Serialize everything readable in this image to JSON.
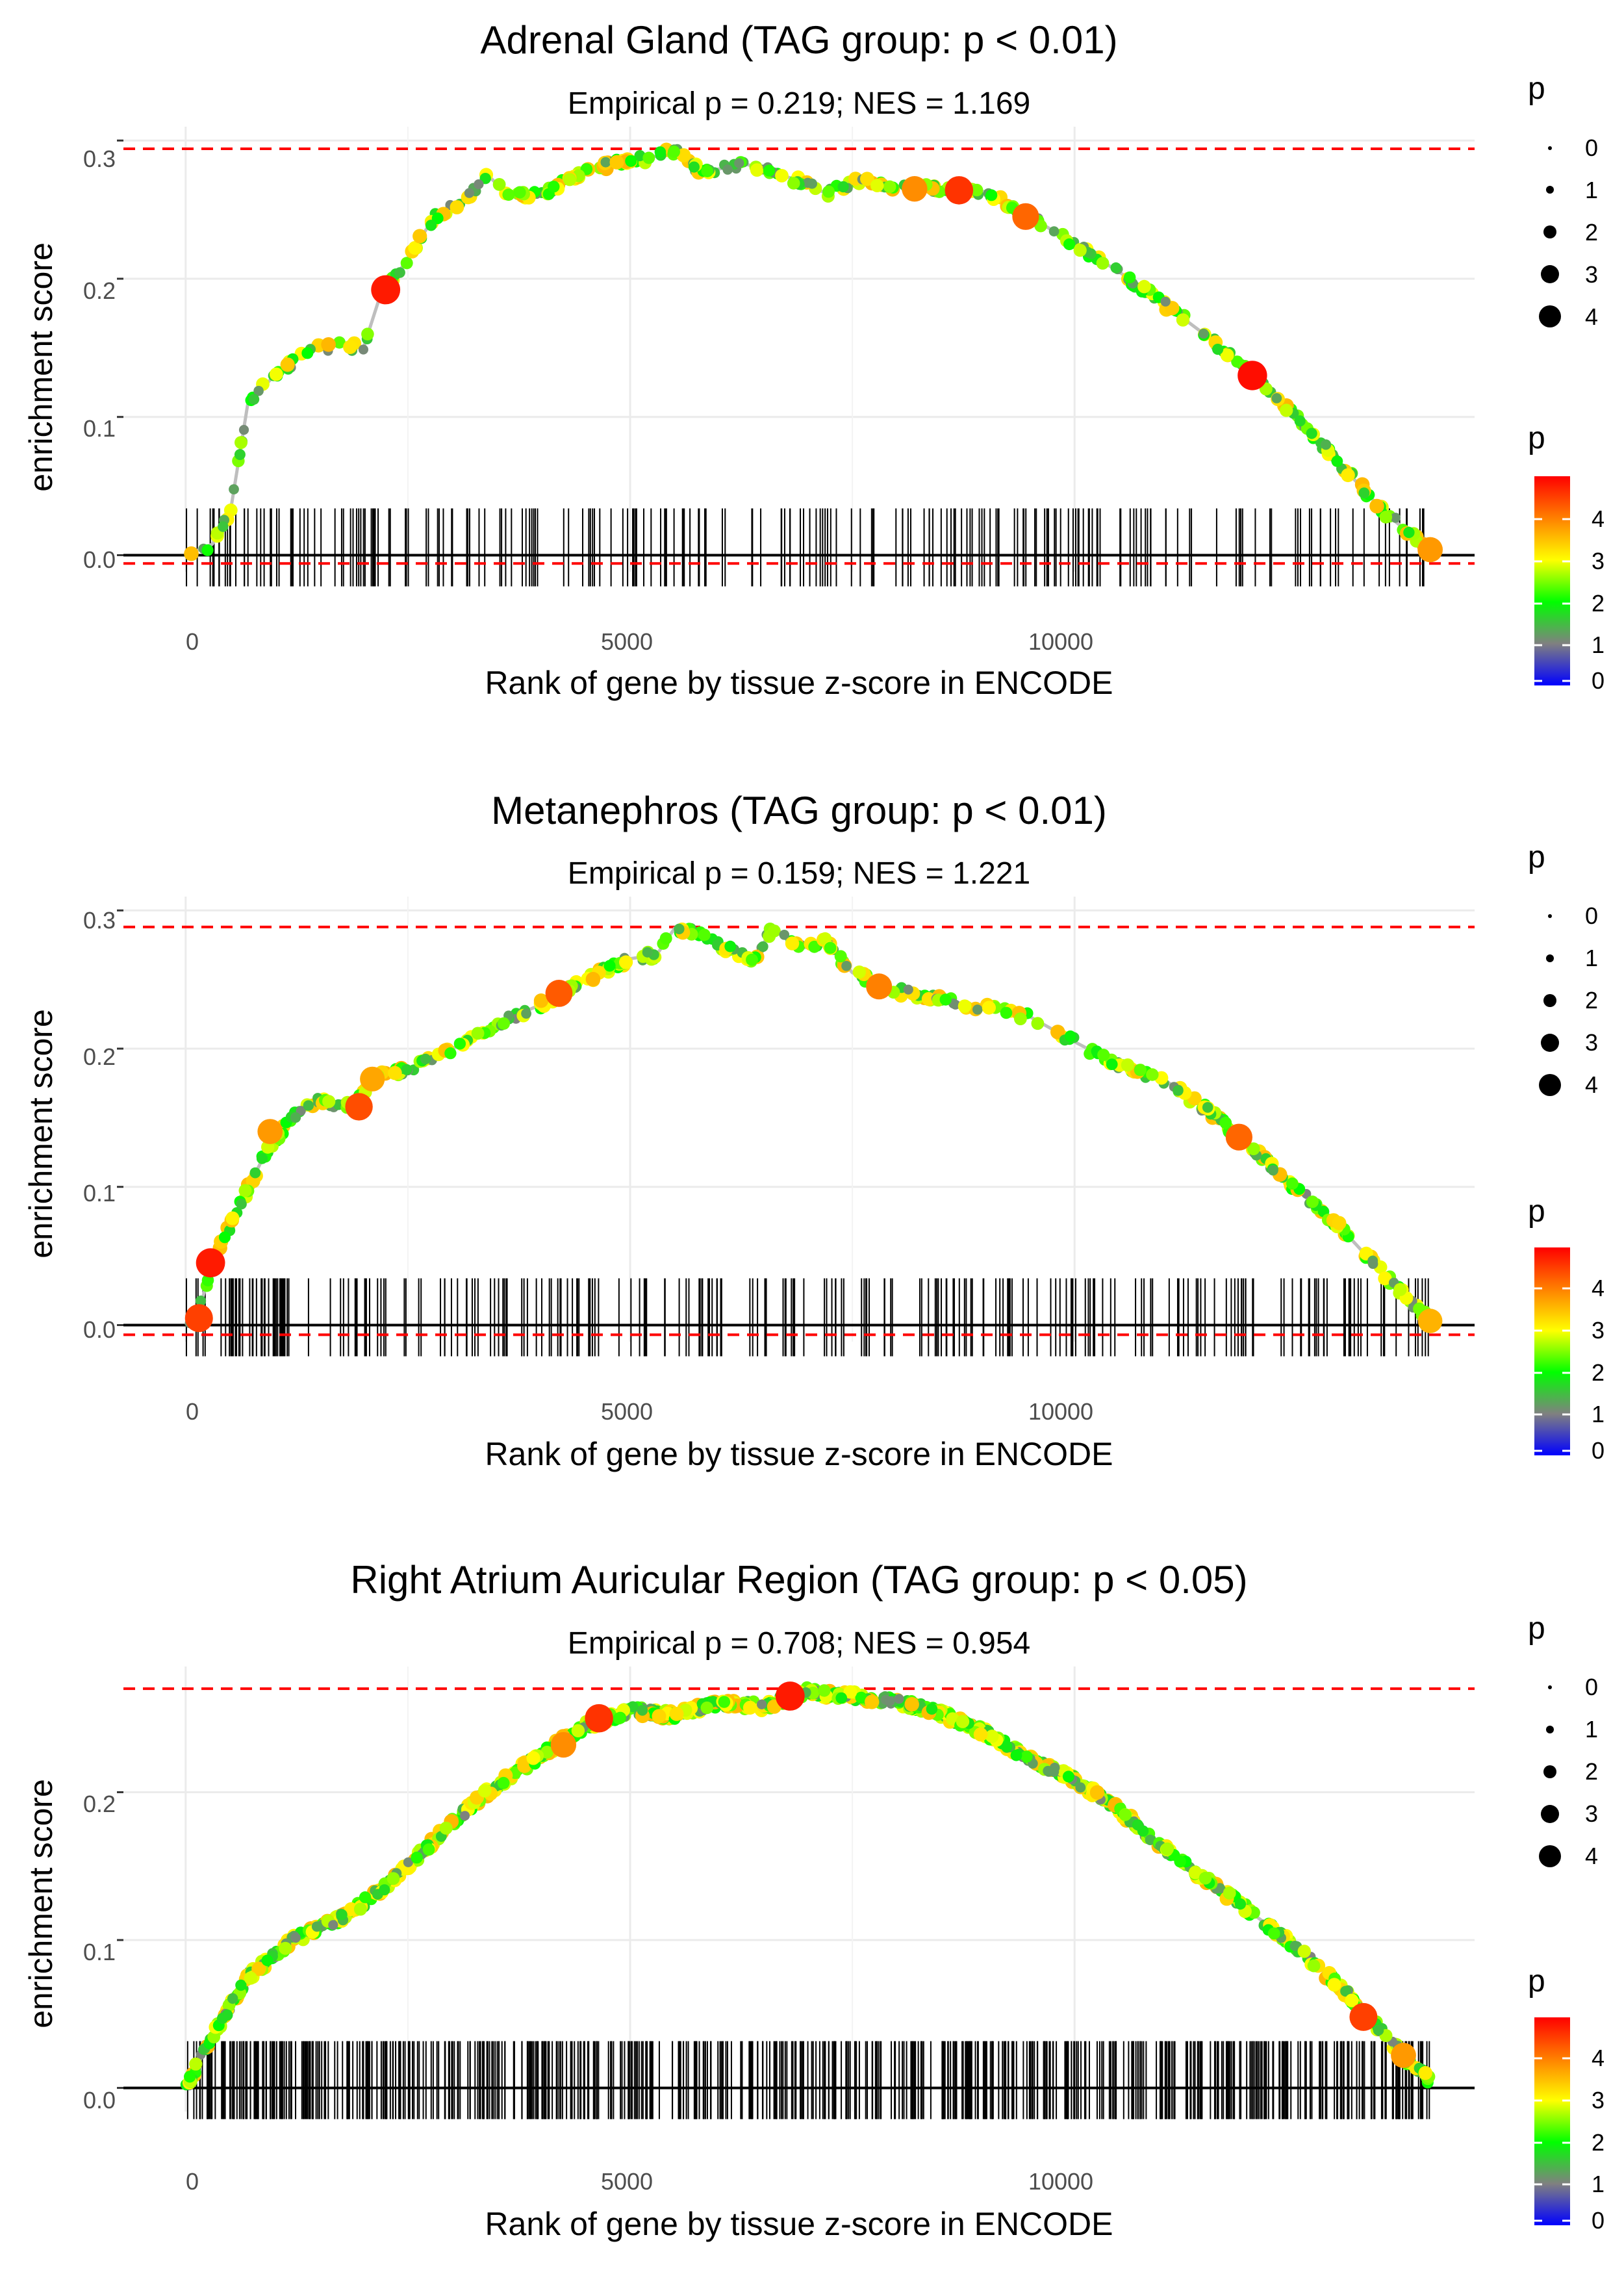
{
  "chart_data": [
    {
      "type": "line",
      "title": "Adrenal Gland (TAG group: p < 0.01)",
      "subtitle": "Empirical p = 0.219; NES = 1.169",
      "xlabel": "Rank of gene by tissue z-score in ENCODE",
      "ylabel": "enrichment score",
      "xlim": [
        -700,
        14500
      ],
      "ylim": [
        -0.012,
        0.31
      ],
      "xticks": [
        0,
        5000,
        10000
      ],
      "xtick_labels": [
        "0",
        "5000",
        "10000"
      ],
      "yticks": [
        0,
        0.1,
        0.2,
        0.3
      ],
      "ytick_labels": [
        "0.0",
        "0.1",
        "0.2",
        "0.3"
      ],
      "ref_max": 0.294,
      "ref_min": -0.006,
      "gene_count": 14000,
      "n_hits": 230,
      "seed": 11,
      "curve": [
        [
          0,
          0
        ],
        [
          300,
          0.008
        ],
        [
          500,
          0.03
        ],
        [
          700,
          0.11
        ],
        [
          1000,
          0.13
        ],
        [
          1400,
          0.148
        ],
        [
          1700,
          0.152
        ],
        [
          2000,
          0.15
        ],
        [
          2200,
          0.19
        ],
        [
          2400,
          0.205
        ],
        [
          2600,
          0.225
        ],
        [
          2800,
          0.245
        ],
        [
          3100,
          0.255
        ],
        [
          3400,
          0.275
        ],
        [
          3600,
          0.262
        ],
        [
          4000,
          0.26
        ],
        [
          4300,
          0.272
        ],
        [
          4700,
          0.282
        ],
        [
          5200,
          0.287
        ],
        [
          5500,
          0.293
        ],
        [
          5800,
          0.277
        ],
        [
          6300,
          0.283
        ],
        [
          6800,
          0.273
        ],
        [
          7200,
          0.262
        ],
        [
          7600,
          0.272
        ],
        [
          8000,
          0.267
        ],
        [
          8500,
          0.265
        ],
        [
          9000,
          0.263
        ],
        [
          9500,
          0.245
        ],
        [
          10000,
          0.225
        ],
        [
          10500,
          0.205
        ],
        [
          11000,
          0.182
        ],
        [
          11500,
          0.158
        ],
        [
          12000,
          0.13
        ],
        [
          12500,
          0.1
        ],
        [
          13000,
          0.065
        ],
        [
          13500,
          0.03
        ],
        [
          14000,
          0.004
        ]
      ],
      "highlights": [
        [
          2250,
          0.192,
          4.8
        ],
        [
          8200,
          0.265,
          3.9
        ],
        [
          8700,
          0.264,
          4.6
        ],
        [
          9450,
          0.245,
          4.2
        ],
        [
          12000,
          0.13,
          4.9
        ],
        [
          14000,
          0.004,
          3.8
        ]
      ],
      "legend_size_title": "p",
      "legend_size_labels": [
        "0",
        "1",
        "2",
        "3",
        "4"
      ],
      "legend_color_title": "p",
      "legend_color_labels": [
        "4",
        "3",
        "2",
        "1",
        "0"
      ]
    },
    {
      "type": "line",
      "title": "Metanephros (TAG group: p < 0.01)",
      "subtitle": "Empirical p = 0.159; NES = 1.221",
      "xlabel": "Rank of gene by tissue z-score in ENCODE",
      "ylabel": "enrichment score",
      "xlim": [
        -700,
        14500
      ],
      "ylim": [
        -0.012,
        0.31
      ],
      "xticks": [
        0,
        5000,
        10000
      ],
      "xtick_labels": [
        "0",
        "5000",
        "10000"
      ],
      "yticks": [
        0,
        0.1,
        0.2,
        0.3
      ],
      "ytick_labels": [
        "0.0",
        "0.1",
        "0.2",
        "0.3"
      ],
      "ref_max": 0.288,
      "ref_min": -0.007,
      "gene_count": 14000,
      "n_hits": 260,
      "seed": 23,
      "curve": [
        [
          0,
          0
        ],
        [
          150,
          0.01
        ],
        [
          300,
          0.045
        ],
        [
          600,
          0.085
        ],
        [
          900,
          0.125
        ],
        [
          1200,
          0.15
        ],
        [
          1500,
          0.162
        ],
        [
          1900,
          0.158
        ],
        [
          2100,
          0.178
        ],
        [
          2500,
          0.185
        ],
        [
          3000,
          0.2
        ],
        [
          3500,
          0.218
        ],
        [
          4000,
          0.232
        ],
        [
          4500,
          0.25
        ],
        [
          5000,
          0.265
        ],
        [
          5300,
          0.268
        ],
        [
          5500,
          0.287
        ],
        [
          5800,
          0.283
        ],
        [
          6100,
          0.272
        ],
        [
          6400,
          0.265
        ],
        [
          6600,
          0.287
        ],
        [
          6900,
          0.272
        ],
        [
          7200,
          0.277
        ],
        [
          7500,
          0.255
        ],
        [
          8000,
          0.242
        ],
        [
          8500,
          0.235
        ],
        [
          9000,
          0.23
        ],
        [
          9500,
          0.223
        ],
        [
          10000,
          0.205
        ],
        [
          10500,
          0.188
        ],
        [
          11000,
          0.178
        ],
        [
          11500,
          0.155
        ],
        [
          12000,
          0.128
        ],
        [
          12500,
          0.098
        ],
        [
          13000,
          0.07
        ],
        [
          13500,
          0.035
        ],
        [
          14000,
          0.003
        ]
      ],
      "highlights": [
        [
          150,
          0.005,
          4.5
        ],
        [
          280,
          0.045,
          4.8
        ],
        [
          950,
          0.14,
          3.8
        ],
        [
          1950,
          0.158,
          4.4
        ],
        [
          2100,
          0.178,
          3.7
        ],
        [
          4200,
          0.24,
          4.3
        ],
        [
          7800,
          0.245,
          4.0
        ],
        [
          11850,
          0.136,
          4.2
        ],
        [
          14000,
          0.003,
          3.6
        ]
      ],
      "legend_size_title": "p",
      "legend_size_labels": [
        "0",
        "1",
        "2",
        "3",
        "4"
      ],
      "legend_color_title": "p",
      "legend_color_labels": [
        "4",
        "3",
        "2",
        "1",
        "0"
      ]
    },
    {
      "type": "line",
      "title": "Right Atrium Auricular Region (TAG group: p < 0.05)",
      "subtitle": "Empirical p = 0.708; NES = 0.954",
      "xlabel": "Rank of gene by tissue z-score in ENCODE",
      "ylabel": "enrichment score",
      "xlim": [
        -700,
        14500
      ],
      "ylim": [
        -0.016,
        0.285
      ],
      "xticks": [
        0,
        5000,
        10000
      ],
      "xtick_labels": [
        "0",
        "5000",
        "10000"
      ],
      "yticks": [
        0,
        0.1,
        0.2
      ],
      "ytick_labels": [
        "0.0",
        "0.1",
        "0.2"
      ],
      "ref_max": 0.27,
      "ref_min": null,
      "gene_count": 14000,
      "n_hits": 640,
      "seed": 37,
      "curve": [
        [
          0,
          0
        ],
        [
          300,
          0.035
        ],
        [
          700,
          0.075
        ],
        [
          1200,
          0.1
        ],
        [
          1600,
          0.11
        ],
        [
          2000,
          0.125
        ],
        [
          2500,
          0.15
        ],
        [
          3000,
          0.18
        ],
        [
          3500,
          0.205
        ],
        [
          4000,
          0.225
        ],
        [
          4500,
          0.245
        ],
        [
          5000,
          0.255
        ],
        [
          5500,
          0.252
        ],
        [
          6000,
          0.26
        ],
        [
          6500,
          0.258
        ],
        [
          7000,
          0.268
        ],
        [
          7500,
          0.265
        ],
        [
          8000,
          0.262
        ],
        [
          8500,
          0.253
        ],
        [
          9000,
          0.24
        ],
        [
          9500,
          0.222
        ],
        [
          10000,
          0.208
        ],
        [
          10500,
          0.188
        ],
        [
          11000,
          0.162
        ],
        [
          11500,
          0.14
        ],
        [
          12000,
          0.118
        ],
        [
          12500,
          0.095
        ],
        [
          13000,
          0.068
        ],
        [
          13500,
          0.035
        ],
        [
          13800,
          0.015
        ],
        [
          14000,
          0.005
        ]
      ],
      "highlights": [
        [
          4650,
          0.25,
          4.6
        ],
        [
          4250,
          0.232,
          3.9
        ],
        [
          6800,
          0.265,
          4.8
        ],
        [
          13250,
          0.048,
          4.5
        ],
        [
          13700,
          0.022,
          3.8
        ]
      ],
      "legend_size_title": "p",
      "legend_size_labels": [
        "0",
        "1",
        "2",
        "3",
        "4"
      ],
      "legend_color_title": "p",
      "legend_color_labels": [
        "4",
        "3",
        "2",
        "1",
        "0"
      ]
    }
  ],
  "colors": {
    "grid": "#ebebeb",
    "reference_line": "#ff0000",
    "curve": "#bebebe",
    "zero_line": "#000000",
    "rug": "#000000",
    "gradient": [
      "#ff0000",
      "#ff8000",
      "#ffff00",
      "#00ff00",
      "#808080",
      "#0000ff"
    ]
  }
}
